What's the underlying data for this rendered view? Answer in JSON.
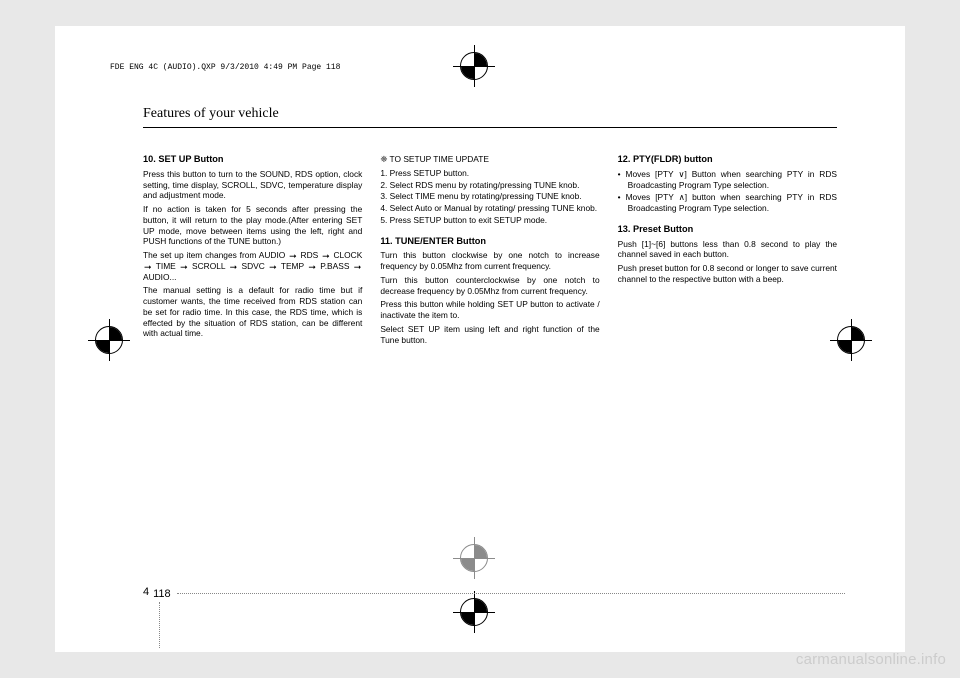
{
  "crop_info": "FDE ENG 4C (AUDIO).QXP  9/3/2010  4:49 PM  Page 118",
  "header": "Features of your vehicle",
  "col1": {
    "h10": "10. SET UP Button",
    "p10a": "Press this button to turn to the SOUND, RDS option, clock setting, time display, SCROLL, SDVC, temperature display and adjustment mode.",
    "p10b": "If no action is taken for 5 seconds after pressing the button, it will return to the play mode.(After entering SET UP mode, move between items using the left, right and PUSH functions of the TUNE button.)",
    "p10c_pre": "The set up item changes from AUDIO ",
    "p10c_seq": [
      "RDS",
      "CLOCK",
      "TIME",
      "SCROLL",
      "SDVC",
      "TEMP",
      "P.BASS",
      "AUDIO..."
    ],
    "p10d": "The manual setting is a default for radio time but if customer wants, the time received from RDS station can be set for radio time. In this case, the RDS time, which is effected by the situation of RDS station, can be different with actual time."
  },
  "col2": {
    "tip_label": "❈ TO SETUP TIME UPDATE",
    "steps": [
      "1. Press SETUP button.",
      "2. Select RDS menu by rotating/pressing TUNE knob.",
      "3. Select TIME menu by rotating/pressing TUNE knob.",
      "4. Select Auto or Manual by rotating/ pressing TUNE knob.",
      "5. Press SETUP button to exit SETUP mode."
    ],
    "h11": "11. TUNE/ENTER Button",
    "p11a": "Turn this button clockwise by one notch to increase frequency by 0.05Mhz from current frequency.",
    "p11b": "Turn this button counterclockwise by one notch to decrease frequency by 0.05Mhz from current frequency.",
    "p11c": "Press this button while holding SET UP button to activate / inactivate the item to.",
    "p11d": "Select SET UP item using left and right function of the Tune button."
  },
  "col3": {
    "h12": "12. PTY(FLDR) button",
    "li12a": "• Moves [PTY ∨] Button when searching PTY in RDS Broadcasting Program Type selection.",
    "li12b": "• Moves [PTY ∧] button when searching PTY in RDS Broadcasting Program Type selection.",
    "h13": "13. Preset Button",
    "p13a": "Push [1]~[6] buttons less than 0.8 second to play the channel saved in each button.",
    "p13b": "Push preset button for 0.8 second or longer to save current channel to the respective button with a beep."
  },
  "footer": {
    "chapter": "4",
    "page": "118"
  },
  "watermark": "carmanualsonline.info"
}
